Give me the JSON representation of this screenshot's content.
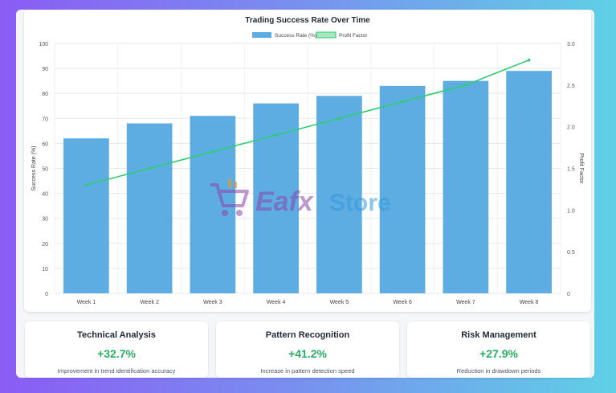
{
  "chart_data": {
    "type": "bar",
    "title": "Trading Success Rate Over Time",
    "categories": [
      "Week 1",
      "Week 2",
      "Week 3",
      "Week 4",
      "Week 5",
      "Week 6",
      "Week 7",
      "Week 8"
    ],
    "series": [
      {
        "name": "Success Rate (%)",
        "type": "bar",
        "axis": "left",
        "color": "#5dade2",
        "values": [
          62,
          68,
          71,
          76,
          79,
          83,
          85,
          89
        ]
      },
      {
        "name": "Profit Factor",
        "type": "line",
        "axis": "right",
        "color": "#2ecc71",
        "values": [
          1.3,
          1.5,
          1.7,
          1.9,
          2.1,
          2.3,
          2.5,
          2.8
        ]
      }
    ],
    "ylabel": "Success Rate (%)",
    "y2label": "Profit Factor",
    "ylim": [
      0,
      100
    ],
    "y2lim": [
      0,
      3.0
    ],
    "yticks": [
      "0",
      "10",
      "20",
      "30",
      "40",
      "50",
      "60",
      "70",
      "80",
      "90",
      "100"
    ],
    "y2ticks": [
      "0",
      "0.5",
      "1.0",
      "1.5",
      "2.0",
      "2.5",
      "3.0"
    ],
    "grid": true,
    "legend": "top-center"
  },
  "stats": [
    {
      "title": "Technical Analysis",
      "value": "+32.7%",
      "desc": "Improvement in trend identification accuracy"
    },
    {
      "title": "Pattern Recognition",
      "value": "+41.2%",
      "desc": "Increase in pattern detection speed"
    },
    {
      "title": "Risk Management",
      "value": "+27.9%",
      "desc": "Reduction in drawdown periods"
    }
  ],
  "watermark": {
    "text_main": "Eafx",
    "text_secondary": "Store",
    "icon": "shopping-cart-icon"
  },
  "colors": {
    "accent_green": "#27ae60",
    "bar_blue": "#5dade2",
    "line_green": "#2ecc71"
  }
}
